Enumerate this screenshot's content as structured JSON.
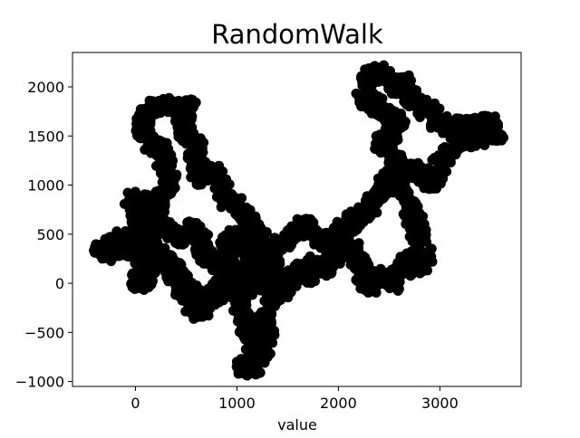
{
  "chart_data": {
    "type": "scatter",
    "title": "RandomWalk",
    "xlabel": "value",
    "ylabel": "",
    "xlim": [
      -620,
      3800
    ],
    "ylim": [
      -1050,
      2350
    ],
    "xticks": [
      0,
      1000,
      2000,
      3000
    ],
    "xtick_labels": [
      "0",
      "1000",
      "2000",
      "3000"
    ],
    "yticks": [
      -1000,
      -500,
      0,
      500,
      1000,
      1500,
      2000
    ],
    "ytick_labels": [
      "−1000",
      "−500",
      "0",
      "500",
      "1000",
      "1500",
      "2000"
    ],
    "grid": false,
    "legend": "none",
    "marker_color": "#000000",
    "series": [
      {
        "path": [
          [
            -250,
            350
          ],
          [
            -150,
            480
          ],
          [
            -60,
            300
          ],
          [
            30,
            430
          ],
          [
            60,
            600
          ],
          [
            140,
            460
          ],
          [
            220,
            620
          ],
          [
            180,
            820
          ],
          [
            80,
            850
          ],
          [
            -40,
            860
          ],
          [
            60,
            700
          ],
          [
            20,
            520
          ],
          [
            120,
            380
          ],
          [
            60,
            180
          ],
          [
            10,
            40
          ],
          [
            90,
            -20
          ],
          [
            160,
            120
          ],
          [
            260,
            260
          ],
          [
            380,
            170
          ],
          [
            460,
            20
          ],
          [
            560,
            -120
          ],
          [
            640,
            -260
          ],
          [
            720,
            -190
          ],
          [
            820,
            -60
          ],
          [
            920,
            60
          ],
          [
            980,
            -120
          ],
          [
            1060,
            -320
          ],
          [
            1120,
            -520
          ],
          [
            1180,
            -680
          ],
          [
            1120,
            -800
          ],
          [
            1040,
            -870
          ],
          [
            1160,
            -850
          ],
          [
            1240,
            -720
          ],
          [
            1300,
            -520
          ],
          [
            1260,
            -330
          ],
          [
            1330,
            -160
          ],
          [
            1420,
            -60
          ],
          [
            1380,
            100
          ],
          [
            1300,
            260
          ],
          [
            1240,
            420
          ],
          [
            1180,
            520
          ],
          [
            1100,
            620
          ],
          [
            1010,
            760
          ],
          [
            900,
            860
          ],
          [
            840,
            1020
          ],
          [
            760,
            1160
          ],
          [
            650,
            1060
          ],
          [
            570,
            1220
          ],
          [
            620,
            1380
          ],
          [
            500,
            1500
          ],
          [
            460,
            1660
          ],
          [
            540,
            1820
          ],
          [
            400,
            1760
          ],
          [
            260,
            1820
          ],
          [
            120,
            1780
          ],
          [
            50,
            1620
          ],
          [
            120,
            1460
          ],
          [
            240,
            1380
          ],
          [
            300,
            1200
          ],
          [
            340,
            1020
          ],
          [
            260,
            880
          ],
          [
            180,
            700
          ],
          [
            320,
            580
          ],
          [
            440,
            460
          ],
          [
            560,
            560
          ],
          [
            640,
            440
          ],
          [
            700,
            300
          ],
          [
            800,
            180
          ],
          [
            880,
            300
          ],
          [
            960,
            480
          ],
          [
            1060,
            360
          ],
          [
            1160,
            220
          ],
          [
            1200,
            60
          ],
          [
            1340,
            0
          ],
          [
            1460,
            -80
          ],
          [
            1540,
            60
          ],
          [
            1620,
            140
          ],
          [
            1700,
            60
          ],
          [
            1780,
            220
          ],
          [
            1880,
            140
          ],
          [
            1960,
            300
          ],
          [
            2060,
            420
          ],
          [
            2160,
            320
          ],
          [
            2220,
            180
          ],
          [
            2240,
            40
          ],
          [
            2320,
            -30
          ],
          [
            2420,
            80
          ],
          [
            2520,
            0
          ],
          [
            2620,
            160
          ],
          [
            2720,
            300
          ],
          [
            2780,
            140
          ],
          [
            2860,
            260
          ],
          [
            2800,
            440
          ],
          [
            2760,
            600
          ],
          [
            2700,
            780
          ],
          [
            2620,
            940
          ],
          [
            2580,
            1100
          ],
          [
            2680,
            1180
          ],
          [
            2800,
            1100
          ],
          [
            2900,
            1000
          ],
          [
            2980,
            1160
          ],
          [
            3060,
            1300
          ],
          [
            3160,
            1420
          ],
          [
            3260,
            1500
          ],
          [
            3380,
            1440
          ],
          [
            3480,
            1560
          ],
          [
            3560,
            1520
          ],
          [
            3460,
            1640
          ],
          [
            3360,
            1620
          ],
          [
            3240,
            1580
          ],
          [
            3140,
            1640
          ],
          [
            3040,
            1600
          ],
          [
            2960,
            1680
          ],
          [
            2880,
            1760
          ],
          [
            2780,
            1820
          ],
          [
            2700,
            1900
          ],
          [
            2660,
            2060
          ],
          [
            2560,
            1980
          ],
          [
            2480,
            2080
          ],
          [
            2380,
            2160
          ],
          [
            2300,
            2060
          ],
          [
            2240,
            1900
          ],
          [
            2380,
            1800
          ],
          [
            2500,
            1700
          ],
          [
            2600,
            1600
          ],
          [
            2520,
            1500
          ],
          [
            2420,
            1420
          ],
          [
            2500,
            1320
          ],
          [
            2600,
            1220
          ],
          [
            2520,
            1080
          ],
          [
            2440,
            960
          ],
          [
            2360,
            820
          ],
          [
            2260,
            700
          ],
          [
            2160,
            640
          ],
          [
            2060,
            560
          ],
          [
            1960,
            480
          ],
          [
            1860,
            420
          ],
          [
            1760,
            520
          ],
          [
            1680,
            600
          ],
          [
            1600,
            560
          ],
          [
            1520,
            500
          ],
          [
            1440,
            400
          ],
          [
            1360,
            300
          ],
          [
            1280,
            160
          ],
          [
            1200,
            40
          ],
          [
            1120,
            -80
          ],
          [
            1040,
            40
          ],
          [
            960,
            160
          ],
          [
            880,
            40
          ],
          [
            800,
            -100
          ],
          [
            700,
            -220
          ],
          [
            620,
            -320
          ],
          [
            540,
            -180
          ],
          [
            460,
            -40
          ],
          [
            380,
            80
          ],
          [
            300,
            200
          ],
          [
            200,
            320
          ],
          [
            100,
            420
          ],
          [
            0,
            500
          ],
          [
            -100,
            420
          ],
          [
            -200,
            360
          ],
          [
            -300,
            300
          ],
          [
            -350,
            380
          ]
        ]
      }
    ]
  }
}
